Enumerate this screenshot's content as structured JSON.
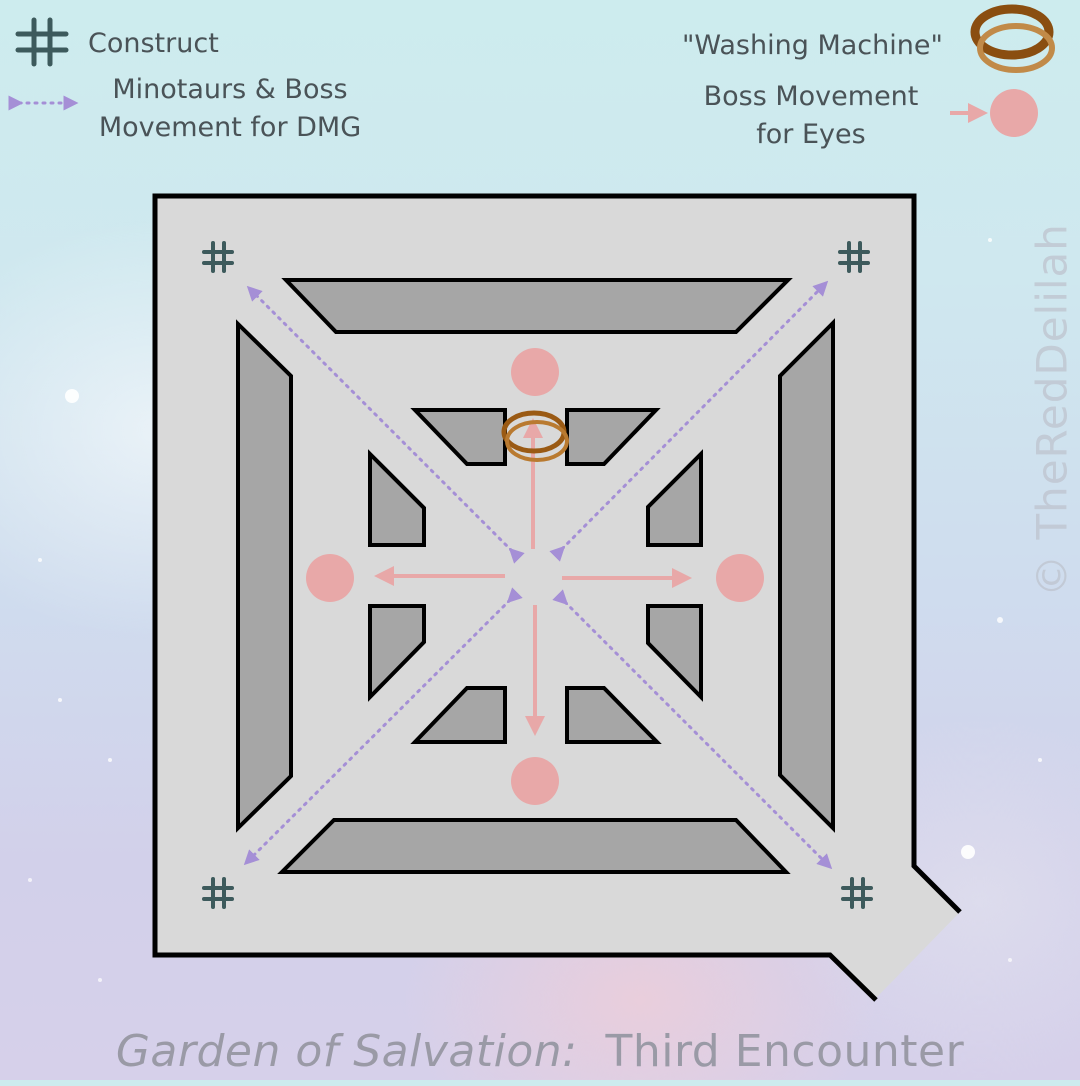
{
  "legend": {
    "construct": {
      "label": "Construct",
      "icon": "hash-icon",
      "color": "#3d5a5c"
    },
    "movement_dmg": {
      "label": "Minotaurs & Boss Movement for DMG",
      "line1": "Minotaurs & Boss",
      "line2": "Movement for DMG",
      "icon": "dotted-double-arrow-icon",
      "color": "#a58fd6"
    },
    "washing_machine": {
      "label": "\"Washing Machine\"",
      "icon": "ring-icon",
      "color": "#9a5a14"
    },
    "boss_movement_eyes": {
      "label": "Boss Movement for Eyes",
      "line1": "Boss Movement",
      "line2": "for Eyes",
      "icon": "arrow-to-circle-icon",
      "color": "#e8a8a8"
    }
  },
  "footer": {
    "title_part1": "Garden of Salvation:",
    "title_part2": "Third Encounter"
  },
  "watermark": "© TheRedDelilah",
  "colors": {
    "floor": "#d9d9d9",
    "pillar": "#a6a6a6",
    "outline": "#000000",
    "eye_circle": "#e8a8a8",
    "pink_arrow": "#e8a8a8",
    "purple_arrow": "#a58fd6",
    "ring": "#9a5a14"
  }
}
